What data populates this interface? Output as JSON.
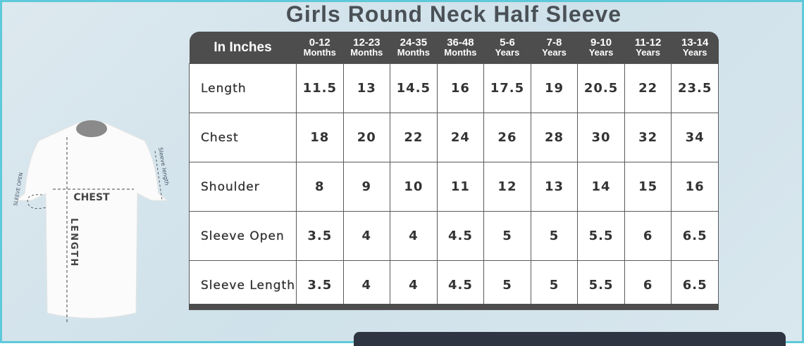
{
  "title": "Girls Round Neck Half Sleeve",
  "header": {
    "label": "In Inches",
    "sizes": [
      {
        "range": "0-12",
        "unit": "Months"
      },
      {
        "range": "12-23",
        "unit": "Months"
      },
      {
        "range": "24-35",
        "unit": "Months"
      },
      {
        "range": "36-48",
        "unit": "Months"
      },
      {
        "range": "5-6",
        "unit": "Years"
      },
      {
        "range": "7-8",
        "unit": "Years"
      },
      {
        "range": "9-10",
        "unit": "Years"
      },
      {
        "range": "11-12",
        "unit": "Years"
      },
      {
        "range": "13-14",
        "unit": "Years"
      }
    ]
  },
  "rows": [
    {
      "label": "Length",
      "values": [
        "11.5",
        "13",
        "14.5",
        "16",
        "17.5",
        "19",
        "20.5",
        "22",
        "23.5"
      ]
    },
    {
      "label": "Chest",
      "values": [
        "18",
        "20",
        "22",
        "24",
        "26",
        "28",
        "30",
        "32",
        "34"
      ]
    },
    {
      "label": "Shoulder",
      "values": [
        "8",
        "9",
        "10",
        "11",
        "12",
        "13",
        "14",
        "15",
        "16"
      ]
    },
    {
      "label": "Sleeve Open",
      "values": [
        "3.5",
        "4",
        "4",
        "4.5",
        "5",
        "5",
        "5.5",
        "6",
        "6.5"
      ]
    },
    {
      "label": "Sleeve Length",
      "values": [
        "3.5",
        "4",
        "4",
        "4.5",
        "5",
        "5",
        "5.5",
        "6",
        "6.5"
      ]
    }
  ],
  "diagram": {
    "chest": "CHEST",
    "length": "LENGTH",
    "sleeve_open": "SLEEVE OPEN",
    "sleeve_length": "Sleeve length"
  }
}
